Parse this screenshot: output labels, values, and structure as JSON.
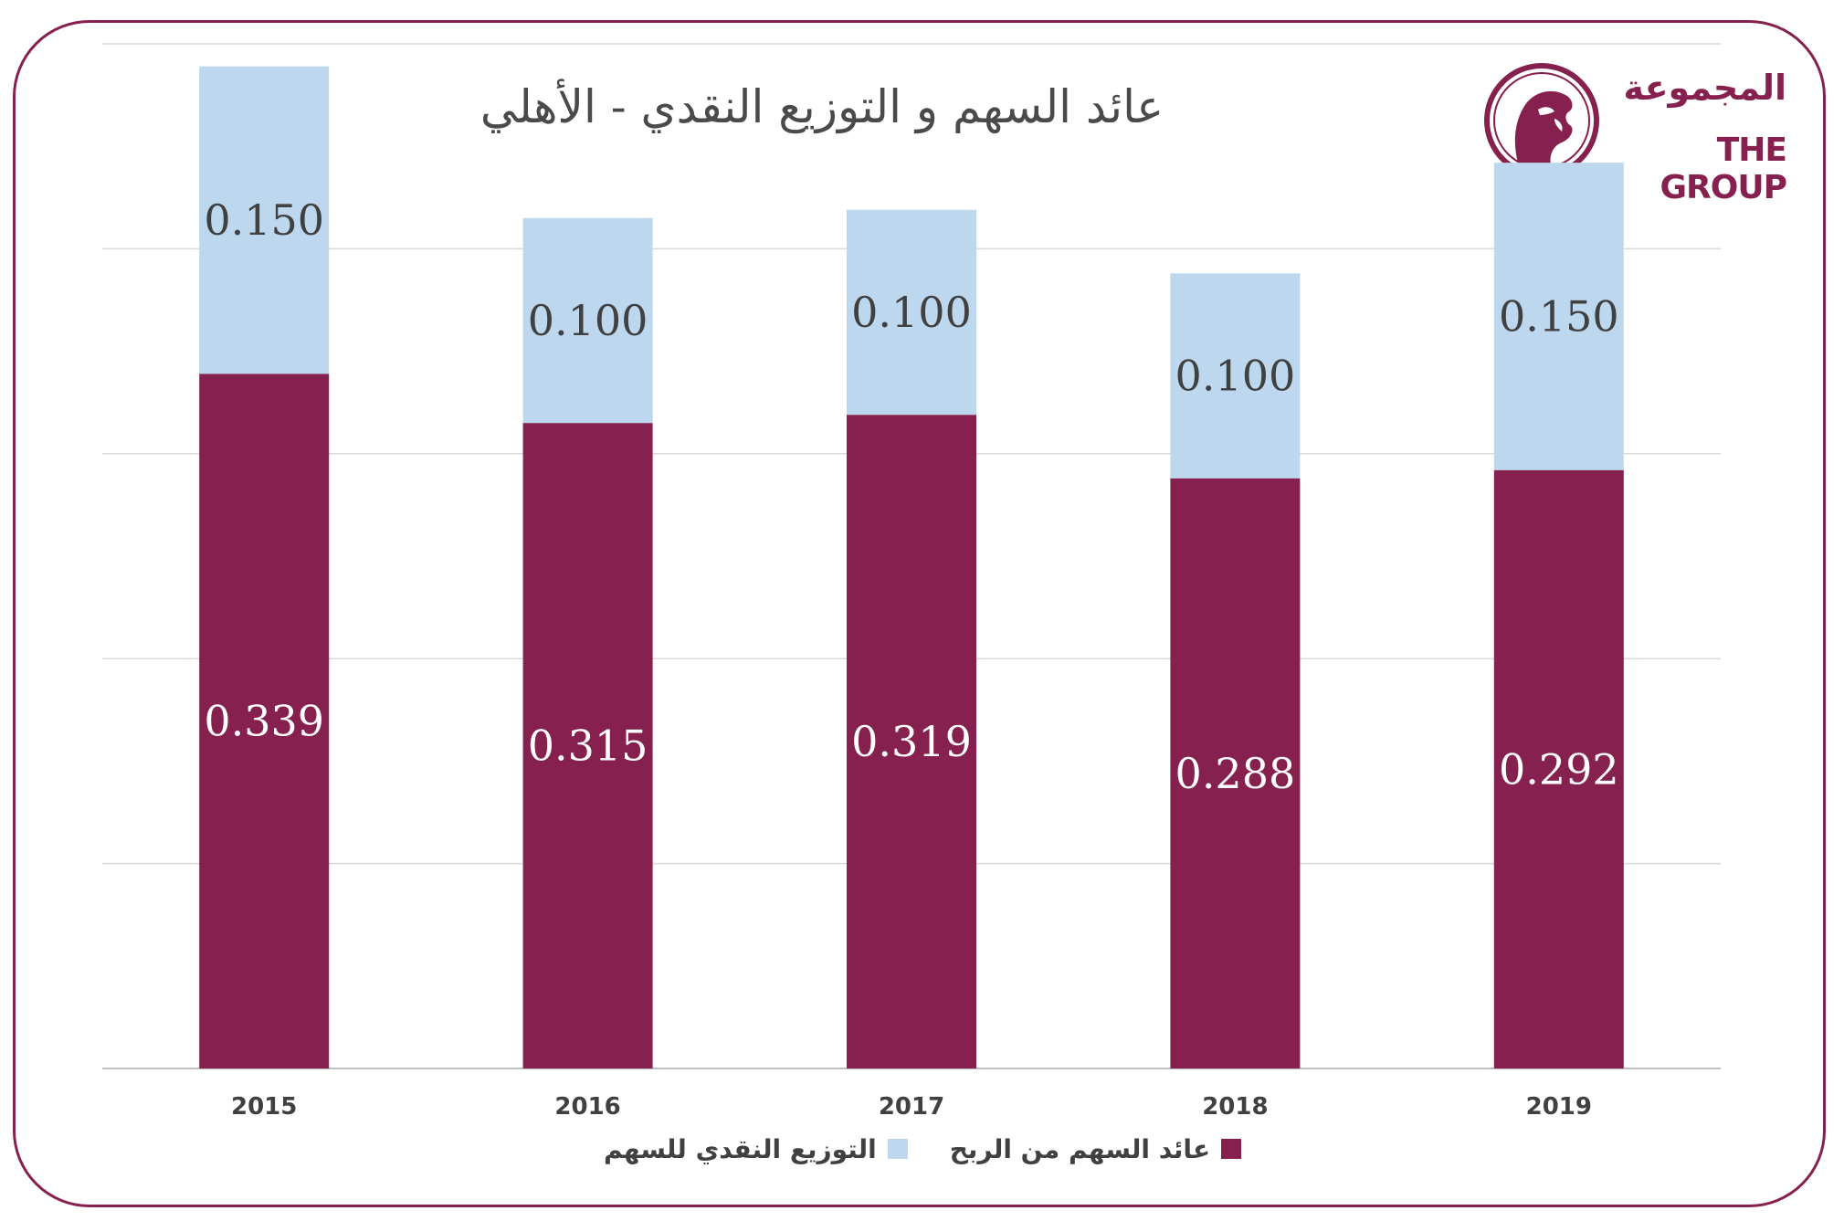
{
  "page": {
    "title": "عائد السهم و التوزيع النقدي - الأهلي"
  },
  "logo": {
    "arabic_text": "المجموعة",
    "english_text": "THE GROUP",
    "icon": "falcon-emblem-icon"
  },
  "colors": {
    "frame": "#86204f",
    "eps": "#86204f",
    "dividend": "#bdd7ee",
    "grid": "#d9d9d9"
  },
  "chart_data": {
    "type": "bar",
    "stacked": true,
    "title": "عائد السهم و التوزيع النقدي - الأهلي",
    "categories": [
      "2015",
      "2016",
      "2017",
      "2018",
      "2019"
    ],
    "series": [
      {
        "name": "عائد السهم من الربح",
        "color": "#86204f",
        "values": [
          0.339,
          0.315,
          0.319,
          0.288,
          0.292
        ],
        "labels": [
          "0.339",
          "0.315",
          "0.319",
          "0.288",
          "0.292"
        ]
      },
      {
        "name": "التوزيع النقدي للسهم",
        "color": "#bdd7ee",
        "values": [
          0.15,
          0.1,
          0.1,
          0.1,
          0.15
        ],
        "labels": [
          "0.150",
          "0.100",
          "0.100",
          "0.100",
          "0.150"
        ]
      }
    ],
    "ylim": [
      0,
      0.5
    ],
    "grid": true,
    "legend_position": "bottom"
  }
}
